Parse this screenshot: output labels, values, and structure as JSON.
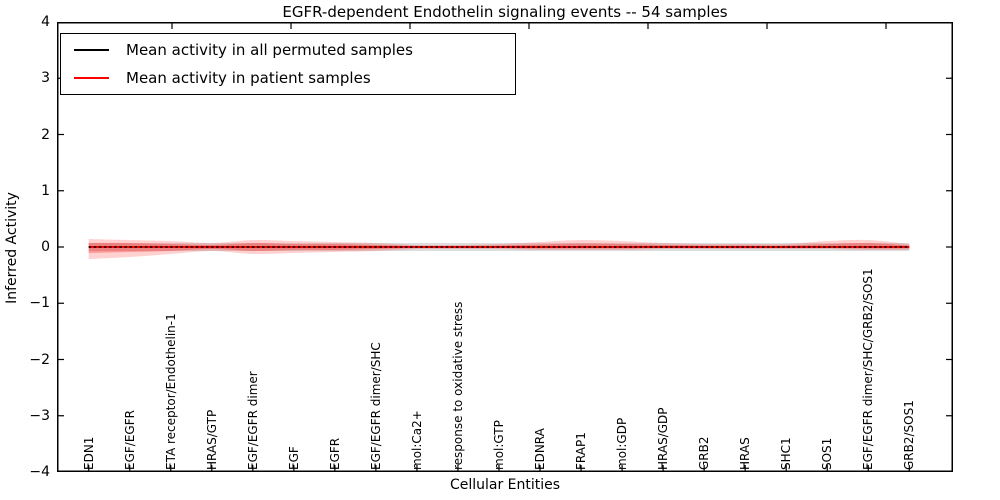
{
  "figure": {
    "title": "EGFR-dependent Endothelin signaling events -- 54 samples",
    "xlabel": "Cellular Entities",
    "ylabel": "Inferred Activity"
  },
  "legend": {
    "items": [
      {
        "label": "Mean activity in all permuted samples",
        "color": "#000000"
      },
      {
        "label": "Mean activity in patient samples",
        "color": "#ff0000"
      }
    ]
  },
  "chart_data": {
    "type": "line",
    "title": "EGFR-dependent Endothelin signaling events -- 54 samples",
    "xlabel": "Cellular Entities",
    "ylabel": "Inferred Activity",
    "ylim": [
      -4,
      4
    ],
    "yticks": [
      4,
      3,
      2,
      1,
      0,
      -1,
      -2,
      -3,
      -4
    ],
    "grid": false,
    "legend_position": "upper left",
    "categories": [
      "EDN1",
      "EGF/EGFR",
      "ETA receptor/Endothelin-1",
      "HRAS/GTP",
      "EGF/EGFR dimer",
      "EGF",
      "EGFR",
      "EGF/EGFR dimer/SHC",
      "mol:Ca2+",
      "response to oxidative stress",
      "mol:GTP",
      "EDNRA",
      "FRAP1",
      "mol:GDP",
      "HRAS/GDP",
      "GRB2",
      "HRAS",
      "SHC1",
      "SOS1",
      "EGF/EGFR dimer/SHC/GRB2/SOS1",
      "GRB2/SOS1"
    ],
    "series": [
      {
        "name": "Mean activity in all permuted samples",
        "color": "#000000",
        "style": "dashed",
        "values": [
          0,
          0,
          0,
          0,
          0,
          0,
          0,
          0,
          0,
          0,
          0,
          0,
          0,
          0,
          0,
          0,
          0,
          0,
          0,
          0,
          0
        ]
      },
      {
        "name": "Mean activity in patient samples",
        "color": "#ff0000",
        "style": "solid",
        "values": [
          0,
          0,
          0,
          0,
          0,
          0,
          0,
          0,
          0,
          0,
          0,
          0,
          0,
          0,
          0,
          0,
          0,
          0,
          0,
          0,
          0
        ]
      }
    ],
    "bands": [
      {
        "name": "permuted-samples-range",
        "color": "#bbbbbb",
        "opacity": 0.5,
        "upper": [
          0.071,
          0.071,
          0.071,
          0.071,
          0.071,
          0.071,
          0.071,
          0.071,
          0.071,
          0.071,
          0.071,
          0.071,
          0.071,
          0.071,
          0.071,
          0.071,
          0.071,
          0.071,
          0.071,
          0.071,
          0.071
        ],
        "lower": [
          -0.071,
          -0.071,
          -0.071,
          -0.071,
          -0.071,
          -0.071,
          -0.071,
          -0.071,
          -0.071,
          -0.071,
          -0.071,
          -0.071,
          -0.071,
          -0.071,
          -0.071,
          -0.071,
          -0.071,
          -0.071,
          -0.071,
          -0.071,
          -0.071
        ]
      },
      {
        "name": "patient-samples-range-outer",
        "color": "#ff0000",
        "opacity": 0.18,
        "upper": [
          0.142,
          0.124,
          0.107,
          0.071,
          0.124,
          0.107,
          0.089,
          0.071,
          0.036,
          0.036,
          0.053,
          0.089,
          0.124,
          0.107,
          0.071,
          0.053,
          0.053,
          0.053,
          0.107,
          0.124,
          0.053
        ],
        "lower": [
          -0.213,
          -0.178,
          -0.124,
          -0.071,
          -0.124,
          -0.107,
          -0.089,
          -0.071,
          -0.036,
          -0.036,
          -0.036,
          -0.053,
          -0.053,
          -0.053,
          -0.036,
          -0.036,
          -0.036,
          -0.036,
          -0.036,
          -0.053,
          -0.053
        ]
      },
      {
        "name": "patient-samples-range-inner",
        "color": "#ff0000",
        "opacity": 0.28,
        "upper": [
          0.071,
          0.071,
          0.053,
          0.036,
          0.071,
          0.053,
          0.053,
          0.036,
          0.018,
          0.018,
          0.027,
          0.044,
          0.062,
          0.053,
          0.036,
          0.027,
          0.027,
          0.027,
          0.053,
          0.071,
          0.027
        ],
        "lower": [
          -0.107,
          -0.089,
          -0.071,
          -0.036,
          -0.071,
          -0.053,
          -0.053,
          -0.036,
          -0.018,
          -0.018,
          -0.018,
          -0.027,
          -0.027,
          -0.027,
          -0.018,
          -0.018,
          -0.018,
          -0.018,
          -0.018,
          -0.027,
          -0.027
        ]
      }
    ]
  }
}
